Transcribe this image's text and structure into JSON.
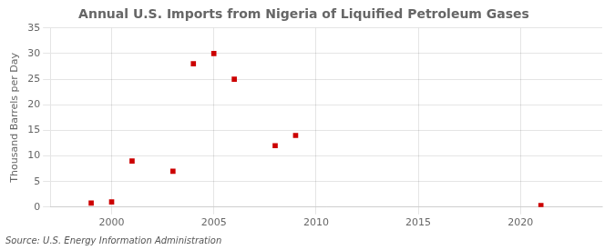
{
  "chart_data": {
    "type": "scatter",
    "title": "Annual U.S. Imports from Nigeria of Liquified Petroleum Gases",
    "ylabel": "Thousand Barrels per Day",
    "annotations": [
      "Source: U.S. Energy Information Administration"
    ],
    "x": [
      1999,
      2000,
      2001,
      2003,
      2004,
      2005,
      2006,
      2008,
      2009,
      2021
    ],
    "values": [
      0.8,
      1.0,
      9.0,
      7.0,
      28.0,
      30.0,
      25.0,
      12.0,
      14.0,
      0.3
    ],
    "color": "#cc0000",
    "marker": "square",
    "xlim": [
      1997,
      2024
    ],
    "ylim": [
      0,
      35
    ],
    "xticks": [
      2000,
      2005,
      2010,
      2015,
      2020
    ],
    "yticks": [
      0,
      5,
      10,
      15,
      20,
      25,
      30,
      35
    ],
    "grid": true
  }
}
